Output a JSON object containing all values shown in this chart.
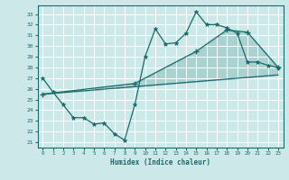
{
  "xlabel": "Humidex (Indice chaleur)",
  "bg_color": "#cce8e8",
  "grid_color": "#ffffff",
  "line_color": "#1a6b6b",
  "xlim": [
    -0.5,
    23.5
  ],
  "ylim": [
    20.5,
    33.8
  ],
  "yticks": [
    21,
    22,
    23,
    24,
    25,
    26,
    27,
    28,
    29,
    30,
    31,
    32,
    33
  ],
  "xticks": [
    0,
    1,
    2,
    3,
    4,
    5,
    6,
    7,
    8,
    9,
    10,
    11,
    12,
    13,
    14,
    15,
    16,
    17,
    18,
    19,
    20,
    21,
    22,
    23
  ],
  "line1_x": [
    0,
    1,
    2,
    3,
    4,
    5,
    6,
    7,
    8,
    9,
    10,
    11,
    12,
    13,
    14,
    15,
    16,
    17,
    18,
    19,
    20,
    21,
    22,
    23
  ],
  "line1_y": [
    27.0,
    25.7,
    24.5,
    23.3,
    23.3,
    22.7,
    22.8,
    21.8,
    21.2,
    24.5,
    29.0,
    31.6,
    30.2,
    30.3,
    31.2,
    33.2,
    32.0,
    32.0,
    31.7,
    31.2,
    28.5,
    28.5,
    28.2,
    28.0
  ],
  "line2_x": [
    0,
    23
  ],
  "line2_y": [
    25.5,
    27.3
  ],
  "line3_x": [
    0,
    9,
    15,
    18,
    20,
    23
  ],
  "line3_y": [
    25.5,
    26.5,
    29.5,
    31.5,
    31.3,
    28.0
  ]
}
